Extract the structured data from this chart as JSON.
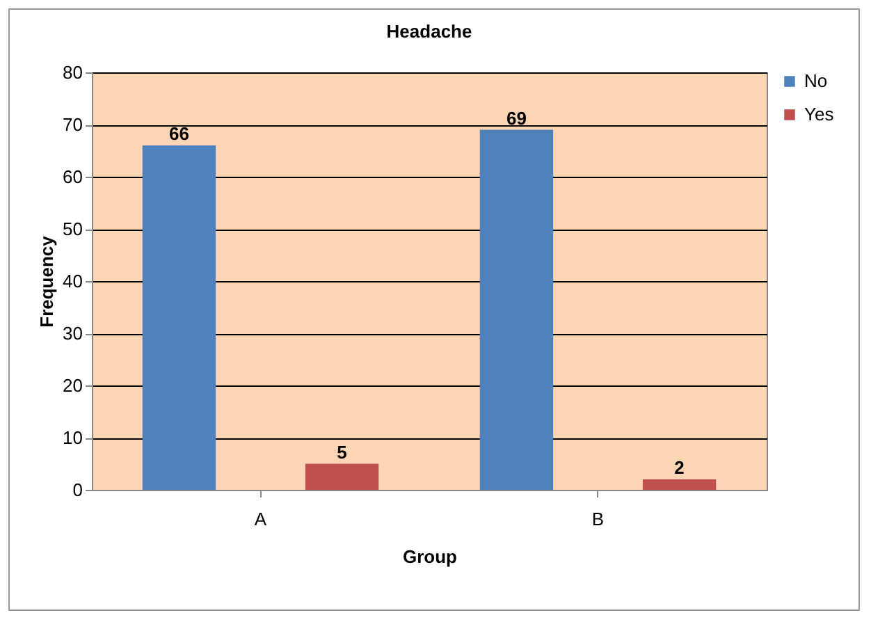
{
  "chart_data": {
    "type": "bar",
    "title": "Headache",
    "xlabel": "Group",
    "ylabel": "Frequency",
    "categories": [
      "A",
      "B"
    ],
    "series": [
      {
        "name": "No",
        "color": "#4f81bd",
        "values": [
          66,
          69
        ]
      },
      {
        "name": "Yes",
        "color": "#c0504d",
        "values": [
          5,
          2
        ]
      }
    ],
    "ylim": [
      0,
      80
    ],
    "yticks": [
      0,
      10,
      20,
      30,
      40,
      50,
      60,
      70,
      80
    ],
    "grid": "y",
    "legend": "right",
    "data_labels": true
  }
}
